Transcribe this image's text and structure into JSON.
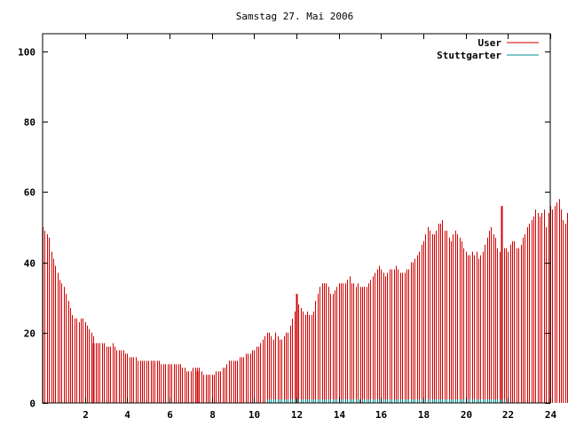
{
  "chart_data": {
    "type": "bar",
    "title": "Samstag 27. Mai 2006",
    "xlabel": "",
    "ylabel": "",
    "xlim": [
      0,
      24
    ],
    "ylim": [
      0,
      105
    ],
    "x_ticks": [
      "2",
      "4",
      "6",
      "8",
      "10",
      "12",
      "14",
      "16",
      "18",
      "20",
      "22",
      "24"
    ],
    "y_ticks": [
      "0",
      "20",
      "40",
      "60",
      "80",
      "100"
    ],
    "legend_position": "top-right",
    "grid": false,
    "series": [
      {
        "name": "User",
        "color": "#d00000",
        "sample_interval_hours": 0.1,
        "values": [
          50,
          49,
          48,
          47,
          43,
          41,
          39,
          37,
          35,
          34,
          33,
          31,
          29,
          27,
          25,
          24,
          24,
          23,
          24,
          24,
          23,
          22,
          21,
          20,
          19,
          17,
          17,
          17,
          17,
          17,
          16,
          16,
          16,
          17,
          16,
          15,
          15,
          15,
          15,
          14,
          14,
          13,
          13,
          13,
          13,
          12,
          12,
          12,
          12,
          12,
          12,
          12,
          12,
          12,
          12,
          12,
          11,
          11,
          11,
          11,
          11,
          11,
          11,
          11,
          11,
          11,
          10,
          10,
          9,
          9,
          9,
          10,
          10,
          10,
          10,
          9,
          8,
          8,
          8,
          8,
          8,
          8,
          9,
          9,
          9,
          10,
          10,
          11,
          12,
          12,
          12,
          12,
          12,
          13,
          13,
          13,
          14,
          14,
          14,
          15,
          15,
          16,
          16,
          17,
          18,
          19,
          20,
          20,
          19,
          18,
          20,
          19,
          18,
          18,
          19,
          20,
          20,
          22,
          24,
          26,
          28,
          28,
          27,
          26,
          25,
          26,
          25,
          25,
          26,
          29,
          31,
          33,
          34,
          34,
          34,
          33,
          31,
          31,
          32,
          33,
          34,
          34,
          34,
          34,
          35,
          36,
          34,
          34,
          33,
          34,
          33,
          33,
          33,
          33,
          34,
          35,
          36,
          37,
          38,
          39,
          38,
          37,
          36,
          37,
          38,
          38,
          38,
          39,
          38,
          37,
          37,
          37,
          38,
          38,
          40,
          40,
          41,
          42,
          43,
          45,
          46,
          48,
          50,
          49,
          48,
          48,
          49,
          51,
          51,
          52,
          49,
          49,
          47,
          46,
          48,
          49,
          48,
          47,
          46,
          44,
          43,
          42,
          42,
          43,
          42,
          43,
          41,
          42,
          43,
          45,
          47,
          49,
          50,
          48,
          47,
          44,
          43,
          44,
          44,
          44,
          43,
          45,
          46,
          46,
          44,
          44,
          45,
          47,
          48,
          50,
          51,
          52,
          53,
          55,
          54,
          53,
          54,
          55,
          50,
          54,
          56,
          55,
          56,
          57,
          58,
          55,
          52,
          51,
          54,
          55,
          56,
          56,
          55,
          55,
          54,
          54,
          54,
          53,
          54,
          55,
          53,
          52,
          50,
          51,
          52,
          49,
          50,
          51,
          50,
          51,
          47
        ],
        "highlighted_samples": [
          {
            "x": 2.4,
            "value": 17
          },
          {
            "x": 7.3,
            "value": 9
          },
          {
            "x": 12.0,
            "value": 31
          },
          {
            "x": 21.7,
            "value": 56
          }
        ]
      },
      {
        "name": "Stuttgarter",
        "color": "#008b8b",
        "sample_interval_hours": 0.1,
        "x_start": 10.6,
        "x_end": 21.8,
        "values_description_free": true,
        "value": 1
      }
    ]
  }
}
